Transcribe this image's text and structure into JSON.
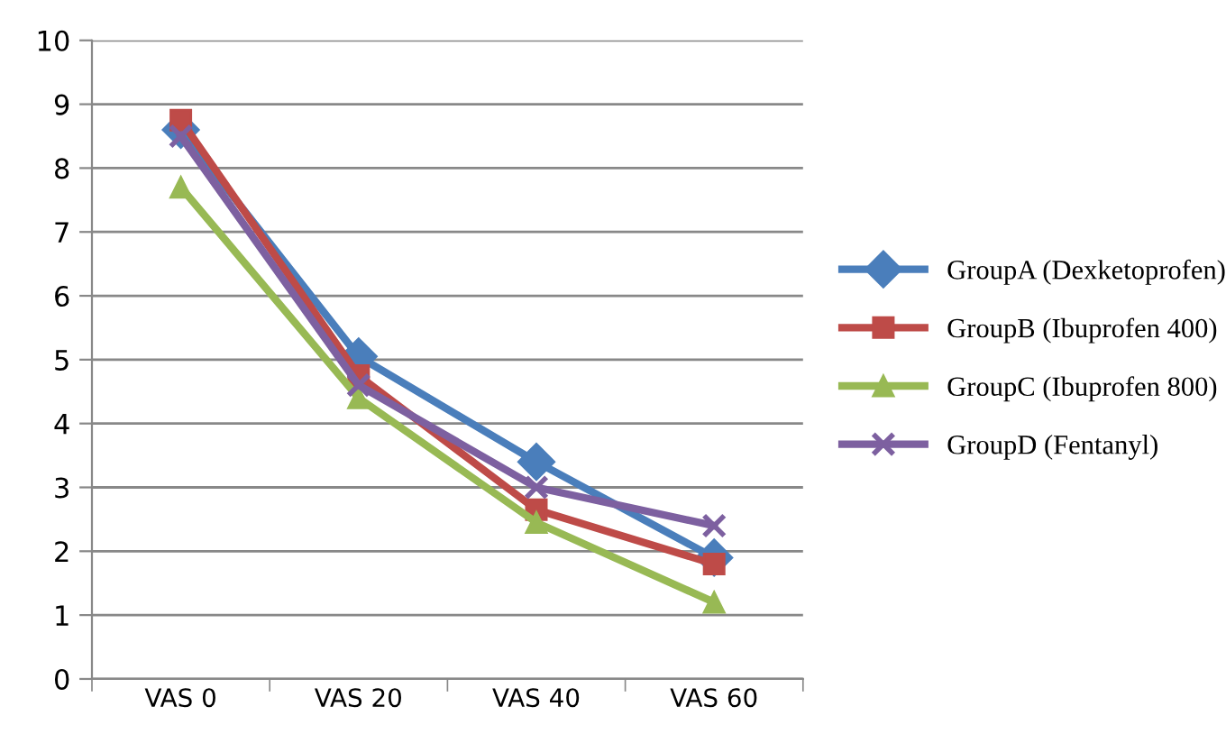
{
  "chart_data": {
    "type": "line",
    "categories": [
      "VAS 0",
      "VAS 20",
      "VAS 40",
      "VAS 60"
    ],
    "series": [
      {
        "name": "GroupA (Dexketoprofen)",
        "color": "#4a7ebb",
        "marker": "diamond",
        "values": [
          8.6,
          5.05,
          3.4,
          1.9
        ]
      },
      {
        "name": "GroupB (Ibuprofen 400)",
        "color": "#be4b48",
        "marker": "square",
        "values": [
          8.75,
          4.75,
          2.65,
          1.8
        ]
      },
      {
        "name": "GroupC (Ibuprofen 800)",
        "color": "#98b954",
        "marker": "triangle",
        "values": [
          7.7,
          4.4,
          2.45,
          1.2
        ]
      },
      {
        "name": "GroupD (Fentanyl)",
        "color": "#7d60a0",
        "marker": "cross",
        "values": [
          8.5,
          4.6,
          3.0,
          2.4
        ]
      }
    ],
    "ylim": [
      0,
      10
    ],
    "yticks": [
      0,
      1,
      2,
      3,
      4,
      5,
      6,
      7,
      8,
      9,
      10
    ],
    "grid": "y",
    "legend": "right",
    "line_style": "solid"
  }
}
